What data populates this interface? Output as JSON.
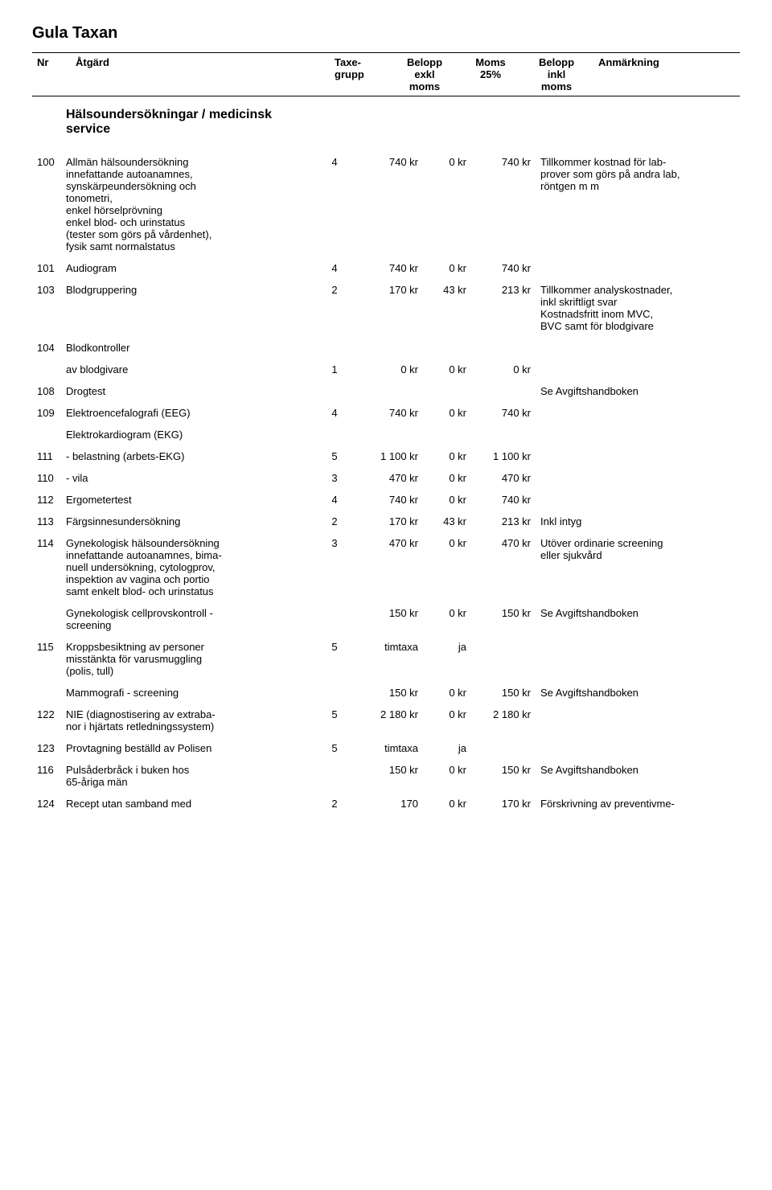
{
  "title": "Gula Taxan",
  "columns": {
    "nr": "Nr",
    "atgard": "Åtgärd",
    "grupp_top": "Taxe-",
    "grupp_bot": "grupp",
    "exkl_top": "Belopp",
    "exkl_mid": "exkl",
    "exkl_bot": "moms",
    "moms_top": "Moms",
    "moms_bot": "25%",
    "inkl_top": "Belopp",
    "inkl_mid": "inkl",
    "inkl_bot": "moms",
    "anm": "Anmärkning"
  },
  "section_title": "Hälsoundersökningar / medicinsk service",
  "rows": [
    {
      "nr": "100",
      "atgard": "Allmän hälsoundersökning\ninnefattande autoanamnes,\nsynskärpeundersökning och\ntonometri,\nenkel hörselprövning\nenkel blod- och urinstatus\n(tester som görs på vårdenhet),\nfysik samt normalstatus",
      "grupp": "4",
      "exkl": "740 kr",
      "moms": "0 kr",
      "inkl": "740 kr",
      "anm": "Tillkommer kostnad för lab-\nprover som görs på andra lab,\nröntgen m m"
    },
    {
      "nr": "101",
      "atgard": "Audiogram",
      "grupp": "4",
      "exkl": "740 kr",
      "moms": "0 kr",
      "inkl": "740 kr",
      "anm": ""
    },
    {
      "nr": "103",
      "atgard": "Blodgruppering",
      "grupp": "2",
      "exkl": "170 kr",
      "moms": "43 kr",
      "inkl": "213 kr",
      "anm": "Tillkommer analyskostnader,\ninkl skriftligt svar\nKostnadsfritt inom MVC,\nBVC samt för blodgivare"
    },
    {
      "nr": "104",
      "atgard": "Blodkontroller",
      "grupp": "",
      "exkl": "",
      "moms": "",
      "inkl": "",
      "anm": ""
    },
    {
      "nr": "",
      "atgard": "        av blodgivare",
      "grupp": "1",
      "exkl": "0 kr",
      "moms": "0 kr",
      "inkl": "0 kr",
      "anm": ""
    },
    {
      "nr": "108",
      "atgard": "Drogtest",
      "grupp": "",
      "exkl": "",
      "moms": "",
      "inkl": "",
      "anm": "Se Avgiftshandboken"
    },
    {
      "nr": "109",
      "atgard": "Elektroencefalografi (EEG)",
      "grupp": "4",
      "exkl": "740 kr",
      "moms": "0 kr",
      "inkl": "740 kr",
      "anm": ""
    },
    {
      "nr": "",
      "atgard": "Elektrokardiogram (EKG)",
      "grupp": "",
      "exkl": "",
      "moms": "",
      "inkl": "",
      "anm": ""
    },
    {
      "nr": "111",
      "atgard": "- belastning (arbets-EKG)",
      "grupp": "5",
      "exkl": "1 100 kr",
      "moms": "0 kr",
      "inkl": "1 100 kr",
      "anm": ""
    },
    {
      "nr": "110",
      "atgard": "- vila",
      "grupp": "3",
      "exkl": "470 kr",
      "moms": "0 kr",
      "inkl": "470 kr",
      "anm": ""
    },
    {
      "nr": "112",
      "atgard": "Ergometertest",
      "grupp": "4",
      "exkl": "740 kr",
      "moms": "0 kr",
      "inkl": "740 kr",
      "anm": ""
    },
    {
      "nr": "113",
      "atgard": "Färgsinnesundersökning",
      "grupp": "2",
      "exkl": "170 kr",
      "moms": "43 kr",
      "inkl": "213 kr",
      "anm": "Inkl intyg"
    },
    {
      "nr": "114",
      "atgard": "Gynekologisk hälsoundersökning\ninnefattande autoanamnes, bima-\nnuell undersökning, cytologprov,\ninspektion av vagina och portio\nsamt enkelt blod- och urinstatus",
      "grupp": "3",
      "exkl": "470 kr",
      "moms": "0 kr",
      "inkl": "470 kr",
      "anm": "Utöver ordinarie screening\neller sjukvård"
    },
    {
      "nr": "",
      "atgard": "Gynekologisk cellprovskontroll -\nscreening",
      "grupp": "",
      "exkl": "150 kr",
      "moms": "0 kr",
      "inkl": "150 kr",
      "anm": "Se Avgiftshandboken"
    },
    {
      "nr": "115",
      "atgard": "Kroppsbesiktning av personer\nmisstänkta för varusmuggling\n(polis, tull)",
      "grupp": "5",
      "exkl": "timtaxa",
      "moms": "ja",
      "inkl": "",
      "anm": ""
    },
    {
      "nr": "",
      "atgard": "Mammografi - screening",
      "grupp": "",
      "exkl": "150 kr",
      "moms": "0 kr",
      "inkl": "150 kr",
      "anm": "Se Avgiftshandboken"
    },
    {
      "nr": "122",
      "atgard": "NIE (diagnostisering av extraba-\nnor i hjärtats retledningssystem)",
      "grupp": "5",
      "exkl": "2 180 kr",
      "moms": "0 kr",
      "inkl": "2 180 kr",
      "anm": ""
    },
    {
      "nr": "123",
      "atgard": "Provtagning beställd av Polisen",
      "grupp": "5",
      "exkl": "timtaxa",
      "moms": "ja",
      "inkl": "",
      "anm": ""
    },
    {
      "nr": "116",
      "atgard": "Pulsåderbråck i buken hos\n65-åriga män",
      "grupp": "",
      "exkl": "150 kr",
      "moms": "0 kr",
      "inkl": "150 kr",
      "anm": "Se Avgiftshandboken"
    },
    {
      "nr": "124",
      "atgard": "Recept utan samband med",
      "grupp": "2",
      "exkl": "170",
      "moms": "0 kr",
      "inkl": "170 kr",
      "anm": "Förskrivning av preventivme-"
    }
  ]
}
